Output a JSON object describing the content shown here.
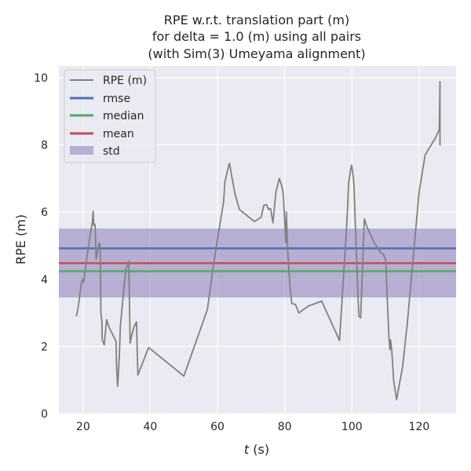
{
  "chart_data": {
    "type": "line",
    "title_lines": [
      "RPE w.r.t. translation part (m)",
      "for delta = 1.0 (m) using all pairs",
      "(with Sim(3) Umeyama alignment)"
    ],
    "xlabel_italic": "t",
    "xlabel_rest": " (s)",
    "ylabel": "RPE (m)",
    "xlim": [
      12.8,
      131
    ],
    "ylim": [
      0,
      10.35
    ],
    "x_ticks": [
      20,
      40,
      60,
      80,
      100,
      120
    ],
    "y_ticks": [
      0,
      2,
      4,
      6,
      8,
      10
    ],
    "grid": true,
    "legend_position": "upper-left",
    "series": [
      {
        "name": "RPE (m)",
        "color": "#808080",
        "points": [
          [
            18.0,
            2.9
          ],
          [
            18.6,
            3.2
          ],
          [
            19.5,
            3.9
          ],
          [
            19.9,
            4.0
          ],
          [
            20.1,
            3.9
          ],
          [
            20.4,
            4.1
          ],
          [
            21.2,
            4.7
          ],
          [
            22.1,
            5.3
          ],
          [
            22.5,
            5.55
          ],
          [
            22.8,
            5.72
          ],
          [
            23.0,
            6.02
          ],
          [
            23.2,
            5.6
          ],
          [
            23.4,
            5.65
          ],
          [
            23.6,
            5.6
          ],
          [
            23.9,
            4.6
          ],
          [
            24.3,
            4.8
          ],
          [
            24.6,
            5.0
          ],
          [
            24.9,
            5.08
          ],
          [
            25.1,
            4.9
          ],
          [
            25.3,
            3.0
          ],
          [
            25.6,
            2.75
          ],
          [
            25.7,
            2.2
          ],
          [
            26.3,
            2.05
          ],
          [
            27.0,
            2.8
          ],
          [
            27.6,
            2.6
          ],
          [
            29.8,
            2.15
          ],
          [
            30.0,
            1.3
          ],
          [
            30.3,
            0.82
          ],
          [
            30.8,
            1.75
          ],
          [
            31.1,
            2.6
          ],
          [
            32.3,
            3.9
          ],
          [
            32.8,
            4.3
          ],
          [
            33.6,
            4.55
          ],
          [
            34.0,
            2.1
          ],
          [
            34.5,
            2.35
          ],
          [
            35.2,
            2.6
          ],
          [
            35.9,
            2.73
          ],
          [
            36.3,
            1.15
          ],
          [
            39.5,
            1.97
          ],
          [
            50.0,
            1.12
          ],
          [
            57.0,
            3.1
          ],
          [
            58.5,
            4.2
          ],
          [
            60.0,
            5.2
          ],
          [
            61.8,
            6.3
          ],
          [
            62.2,
            6.9
          ],
          [
            63.4,
            7.4
          ],
          [
            63.6,
            7.45
          ],
          [
            64.0,
            7.2
          ],
          [
            65.2,
            6.55
          ],
          [
            66.5,
            6.08
          ],
          [
            71.0,
            5.72
          ],
          [
            73.0,
            5.85
          ],
          [
            73.8,
            6.2
          ],
          [
            74.6,
            6.22
          ],
          [
            75.2,
            6.08
          ],
          [
            75.8,
            6.1
          ],
          [
            76.5,
            5.68
          ],
          [
            77.4,
            6.6
          ],
          [
            78.4,
            7.0
          ],
          [
            78.9,
            6.85
          ],
          [
            79.3,
            6.7
          ],
          [
            79.6,
            6.5
          ],
          [
            80.3,
            5.08
          ],
          [
            80.5,
            6.0
          ],
          [
            80.9,
            4.85
          ],
          [
            81.6,
            3.75
          ],
          [
            82.1,
            3.28
          ],
          [
            83.2,
            3.25
          ],
          [
            84.2,
            3.0
          ],
          [
            87.0,
            3.2
          ],
          [
            91.0,
            3.35
          ],
          [
            96.3,
            2.18
          ],
          [
            98.4,
            5.5
          ],
          [
            98.8,
            6.35
          ],
          [
            99.0,
            6.85
          ],
          [
            99.6,
            7.25
          ],
          [
            99.9,
            7.4
          ],
          [
            100.4,
            7.05
          ],
          [
            100.6,
            6.8
          ],
          [
            101.8,
            3.5
          ],
          [
            102.1,
            2.9
          ],
          [
            102.6,
            2.85
          ],
          [
            103.7,
            5.8
          ],
          [
            104.5,
            5.55
          ],
          [
            106.5,
            5.12
          ],
          [
            108.5,
            4.8
          ],
          [
            109.5,
            4.72
          ],
          [
            110.1,
            4.55
          ],
          [
            110.5,
            3.5
          ],
          [
            111.0,
            2.3
          ],
          [
            111.3,
            1.9
          ],
          [
            111.5,
            2.2
          ],
          [
            111.9,
            1.85
          ],
          [
            112.4,
            1.0
          ],
          [
            113.3,
            0.42
          ],
          [
            115.1,
            1.4
          ],
          [
            116.5,
            2.7
          ],
          [
            118.3,
            4.7
          ],
          [
            120.0,
            6.6
          ],
          [
            121.8,
            7.7
          ],
          [
            124.8,
            8.2
          ],
          [
            126.0,
            8.45
          ],
          [
            126.2,
            9.88
          ],
          [
            126.2,
            7.98
          ]
        ]
      },
      {
        "name": "rmse",
        "color": "#4c72b0",
        "value": 4.92
      },
      {
        "name": "median",
        "color": "#55a868",
        "value": 4.24
      },
      {
        "name": "mean",
        "color": "#c44e52",
        "value": 4.48
      }
    ],
    "std_band": {
      "name": "std",
      "color": "#8172b3",
      "lower": 3.46,
      "upper": 5.51
    }
  },
  "colors": {
    "plot_background": "#eaeaf2",
    "grid": "#ffffff",
    "text": "#262626"
  }
}
